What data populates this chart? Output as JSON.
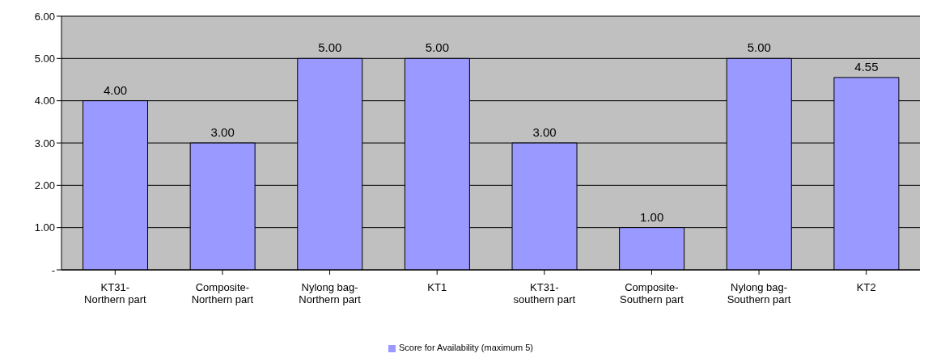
{
  "chart_data": {
    "type": "bar",
    "categories": [
      "KT31-Northern part",
      "Composite-Northern part",
      "Nylong bag-Northern part",
      "KT1",
      "KT31-southern part",
      "Composite-Southern part",
      "Nylong bag-Southern part",
      "KT2"
    ],
    "series": [
      {
        "name": "Score for Availability (maximum 5)",
        "color": "#9999ff",
        "values": [
          4,
          3,
          5,
          5,
          3,
          1,
          5,
          4.55
        ],
        "value_labels": [
          "4.00",
          "3.00",
          "5.00",
          "5.00",
          "3.00",
          "1.00",
          "5.00",
          "4.55"
        ]
      }
    ],
    "ylim": [
      0,
      6
    ],
    "yticks": [
      {
        "value": 0,
        "label": "-"
      },
      {
        "value": 1,
        "label": "1.00"
      },
      {
        "value": 2,
        "label": "2.00"
      },
      {
        "value": 3,
        "label": "3.00"
      },
      {
        "value": 4,
        "label": "4.00"
      },
      {
        "value": 5,
        "label": "5.00"
      },
      {
        "value": 6,
        "label": "6.00"
      }
    ],
    "grid": "y",
    "legend": "bottom"
  }
}
